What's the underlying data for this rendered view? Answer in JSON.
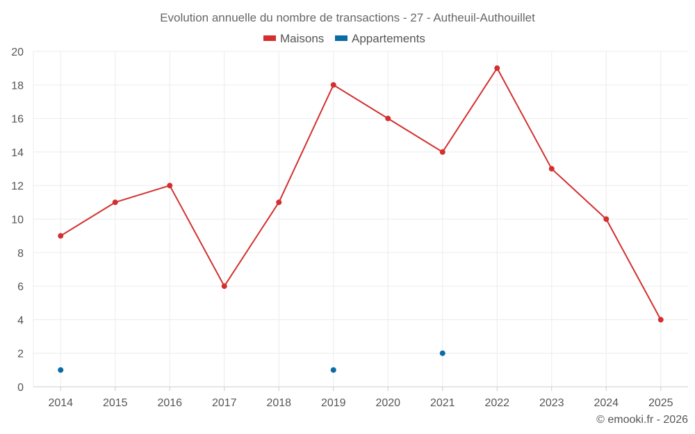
{
  "chart_data": {
    "type": "line",
    "title": "Evolution annuelle du nombre de transactions - 27 - Autheuil-Authouillet",
    "categories": [
      "2014",
      "2015",
      "2016",
      "2017",
      "2018",
      "2019",
      "2020",
      "2021",
      "2022",
      "2023",
      "2024",
      "2025"
    ],
    "series": [
      {
        "name": "Maisons",
        "color": "#d32f2f",
        "values": [
          9,
          11,
          12,
          6,
          11,
          18,
          16,
          14,
          19,
          13,
          10,
          4
        ]
      },
      {
        "name": "Appartements",
        "color": "#0a6ba5",
        "values": [
          1,
          null,
          null,
          null,
          null,
          1,
          null,
          2,
          null,
          null,
          null,
          null
        ]
      }
    ],
    "ylim": [
      0,
      20
    ],
    "yticks": [
      0,
      2,
      4,
      6,
      8,
      10,
      12,
      14,
      16,
      18,
      20
    ],
    "grid": true,
    "legend_position": "top-center"
  },
  "credit": "© emooki.fr - 2026"
}
